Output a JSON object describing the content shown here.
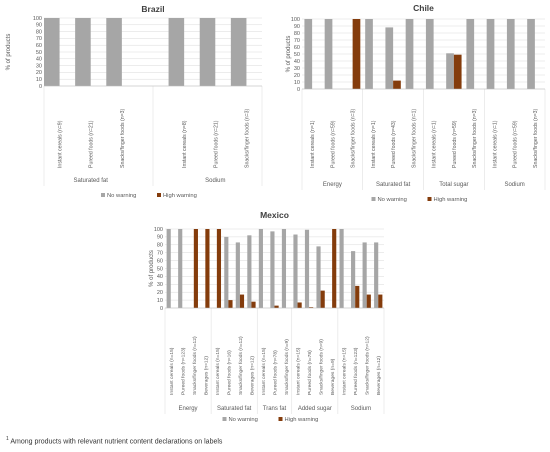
{
  "footnote": {
    "marker": "1",
    "text": "Among products with relevant nutrient content declarations on labels"
  },
  "colors": {
    "no_warning": "#a6a6a6",
    "high_warning": "#843c0c",
    "grid": "#d9d9d9",
    "axis": "#bfbfbf",
    "text": "#595959"
  },
  "chart_data": [
    {
      "id": "brazil",
      "type": "bar",
      "title": "Brazil",
      "ylabel": "% of products",
      "ylim": [
        0,
        100
      ],
      "yticks": [
        0,
        10,
        20,
        30,
        40,
        50,
        60,
        70,
        80,
        90,
        100
      ],
      "legend": {
        "position": "bottom",
        "entries": [
          "No warning",
          "High warning"
        ]
      },
      "groups": [
        {
          "label": "Saturated fat",
          "categories": [
            "Instant cereals (n=9)",
            "Pureed foods (n=21)",
            "Snacks/finger foods (n=3)"
          ],
          "series": [
            {
              "name": "No warning",
              "values": [
                100,
                100,
                100
              ]
            },
            {
              "name": "High warning",
              "values": [
                0,
                0,
                0
              ]
            }
          ]
        },
        {
          "label": "Sodium",
          "categories": [
            "Instant cereals (n=8)",
            "Pureed foods (n=21)",
            "Snacks/finger foods (n=3)"
          ],
          "series": [
            {
              "name": "No warning",
              "values": [
                100,
                100,
                100
              ]
            },
            {
              "name": "High warning",
              "values": [
                0,
                0,
                0
              ]
            }
          ]
        }
      ]
    },
    {
      "id": "chile",
      "type": "bar",
      "title": "Chile",
      "ylabel": "% of products",
      "ylim": [
        0,
        100
      ],
      "yticks": [
        0,
        10,
        20,
        30,
        40,
        50,
        60,
        70,
        80,
        90,
        100
      ],
      "legend": {
        "position": "bottom",
        "entries": [
          "No warning",
          "High warning"
        ]
      },
      "groups": [
        {
          "label": "Energy",
          "categories": [
            "Instant cereals (n=1)",
            "Pureed foods (n=59)",
            "Snacks/finger foods (n=3)"
          ],
          "series": [
            {
              "name": "No warning",
              "values": [
                100,
                100,
                0
              ]
            },
            {
              "name": "High warning",
              "values": [
                0,
                0,
                100
              ]
            }
          ]
        },
        {
          "label": "Saturated fat",
          "categories": [
            "Instant cereals (n=1)",
            "Pureed foods (n=43)",
            "Snacks/finger foods (n=1)"
          ],
          "series": [
            {
              "name": "No warning",
              "values": [
                100,
                88,
                100
              ]
            },
            {
              "name": "High warning",
              "values": [
                0,
                12,
                0
              ]
            }
          ]
        },
        {
          "label": "Total sugar",
          "categories": [
            "Instant cereals (n=1)",
            "Pureed foods (n=59)",
            "Snacks/finger foods (n=3)"
          ],
          "series": [
            {
              "name": "No warning",
              "values": [
                100,
                51,
                100
              ]
            },
            {
              "name": "High warning",
              "values": [
                0,
                49,
                0
              ]
            }
          ]
        },
        {
          "label": "Sodium",
          "categories": [
            "Instant cereals (n=1)",
            "Pureed foods (n=59)",
            "Snacks/finger foods (n=3)"
          ],
          "series": [
            {
              "name": "No warning",
              "values": [
                100,
                100,
                100
              ]
            },
            {
              "name": "High warning",
              "values": [
                0,
                0,
                0
              ]
            }
          ]
        }
      ]
    },
    {
      "id": "mexico",
      "type": "bar",
      "title": "Mexico",
      "ylabel": "% of products",
      "ylim": [
        0,
        100
      ],
      "yticks": [
        0,
        10,
        20,
        30,
        40,
        50,
        60,
        70,
        80,
        90,
        100
      ],
      "legend": {
        "position": "bottom",
        "entries": [
          "No warning",
          "High warning"
        ]
      },
      "groups": [
        {
          "label": "Energy",
          "categories": [
            "Instant cereals (n=15)",
            "Pureed foods (n=123)",
            "Snacks/finger foods (n=12)",
            "Beverages (n=12)"
          ],
          "series": [
            {
              "name": "No warning",
              "values": [
                100,
                100,
                0,
                0
              ]
            },
            {
              "name": "High warning",
              "values": [
                0,
                0,
                100,
                100
              ]
            }
          ]
        },
        {
          "label": "Saturated fat",
          "categories": [
            "Instant cereals (n=15)",
            "Pureed foods (n=16)",
            "Snacks/finger foods (n=12)",
            "Beverages (n=12)"
          ],
          "series": [
            {
              "name": "No warning",
              "values": [
                0,
                90,
                83,
                92
              ]
            },
            {
              "name": "High warning",
              "values": [
                100,
                10,
                17,
                8
              ]
            }
          ]
        },
        {
          "label": "Trans fat",
          "categories": [
            "Instant cereals (n=15)",
            "Pureed foods (n=78)",
            "Snacks/finger foods (n=9)"
          ],
          "series": [
            {
              "name": "No warning",
              "values": [
                100,
                97,
                100
              ]
            },
            {
              "name": "High warning",
              "values": [
                0,
                3,
                0
              ]
            }
          ]
        },
        {
          "label": "Added sugar",
          "categories": [
            "Instant cereals (n=15)",
            "Pureed foods (n=78)",
            "Snacks/finger foods (n=9)",
            "Beverages (n=9)"
          ],
          "series": [
            {
              "name": "No warning",
              "values": [
                93,
                99,
                78,
                0
              ]
            },
            {
              "name": "High warning",
              "values": [
                7,
                1,
                22,
                100
              ]
            }
          ]
        },
        {
          "label": "Sodium",
          "categories": [
            "Instant cereals (n=15)",
            "Pureed foods (n=123)",
            "Snacks/finger foods (n=12)",
            "Beverages (n=12)"
          ],
          "series": [
            {
              "name": "No warning",
              "values": [
                100,
                72,
                83,
                83
              ]
            },
            {
              "name": "High warning",
              "values": [
                0,
                28,
                17,
                17
              ]
            }
          ]
        }
      ]
    }
  ]
}
